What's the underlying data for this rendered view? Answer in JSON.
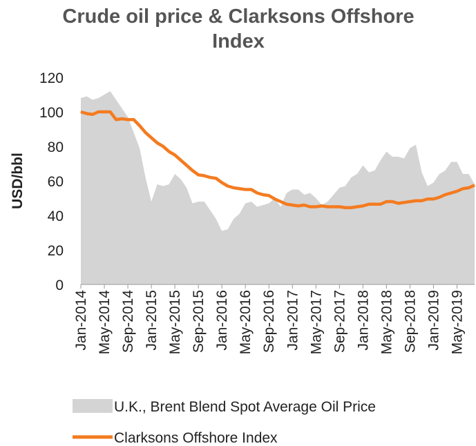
{
  "chart_data": {
    "type": "area-line",
    "title": "Crude oil price & Clarksons Offshore Index",
    "y_label": "USD/bbl",
    "categories": [
      "Jan-2014",
      null,
      null,
      null,
      "May-2014",
      null,
      null,
      null,
      "Sep-2014",
      null,
      null,
      null,
      "Jan-2015",
      null,
      null,
      null,
      "May-2015",
      null,
      null,
      null,
      "Sep-2015",
      null,
      null,
      null,
      "Jan-2016",
      null,
      null,
      null,
      "May-2016",
      null,
      null,
      null,
      "Sep-2016",
      null,
      null,
      null,
      "Jan-2017",
      null,
      null,
      null,
      "May-2017",
      null,
      null,
      null,
      "Sep-2017",
      null,
      null,
      null,
      "Jan-2018",
      null,
      null,
      null,
      "May-2018",
      null,
      null,
      null,
      "Sep-2018",
      null,
      null,
      null,
      "Jan-2019",
      null,
      null,
      null,
      "May-2019",
      null,
      null,
      null
    ],
    "series": [
      {
        "name": "U.K., Brent Blend Spot Average Oil Price",
        "color": "#d4d4d4",
        "kind": "area",
        "values": [
          108,
          109,
          107,
          108,
          110,
          112,
          107,
          102,
          97,
          88,
          79,
          62,
          48,
          58,
          57,
          58,
          64,
          61,
          56,
          47,
          48,
          48,
          43,
          38,
          31,
          32,
          38,
          41,
          47,
          48,
          45,
          46,
          47,
          50,
          45,
          53,
          55,
          55,
          52,
          53,
          50,
          46,
          48,
          52,
          56,
          57,
          62,
          64,
          69,
          65,
          66,
          72,
          77,
          74,
          74,
          73,
          79,
          81,
          65,
          57,
          59,
          64,
          66,
          71,
          71,
          64,
          64,
          58
        ]
      },
      {
        "name": "Clarksons Offshore Index",
        "color": "#f47b20",
        "kind": "line",
        "values": [
          100,
          99,
          98.5,
          100,
          100,
          100,
          95.5,
          96,
          95.5,
          95.5,
          92,
          88,
          85,
          82,
          80,
          77,
          75,
          72,
          69,
          66,
          63.5,
          63,
          62,
          61.5,
          59,
          57,
          56,
          55.5,
          55,
          55,
          53,
          52,
          51.5,
          49.5,
          48,
          46.5,
          46,
          45.5,
          46,
          45,
          45,
          45.5,
          45,
          45,
          45,
          44.5,
          44.5,
          45,
          45.5,
          46.5,
          46.5,
          46.5,
          48,
          48,
          47,
          47.5,
          48,
          48.5,
          48.5,
          49.5,
          49.5,
          50.5,
          52,
          53,
          54,
          55.5,
          56,
          57.5
        ]
      }
    ],
    "ylim": [
      0,
      120
    ],
    "yticks": [
      0,
      20,
      40,
      60,
      80,
      100,
      120
    ]
  }
}
